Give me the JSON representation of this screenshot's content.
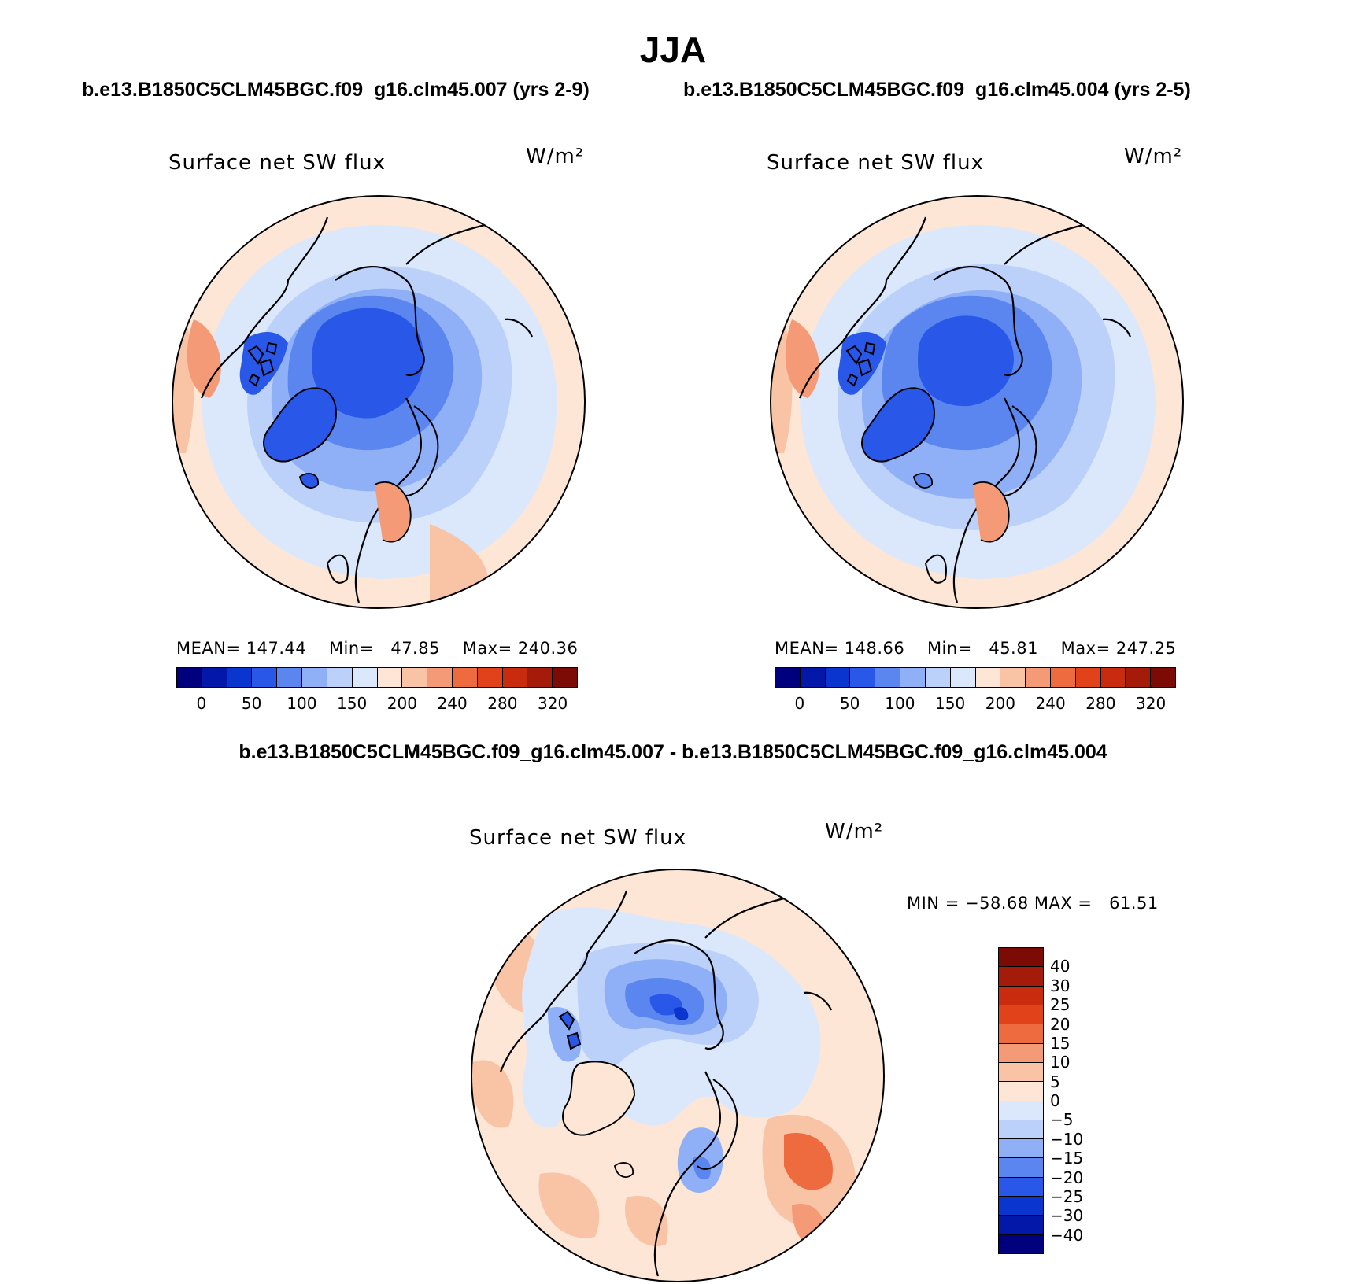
{
  "season": "JJA",
  "case_a_title": "b.e13.B1850C5CLM45BGC.f09_g16.clm45.007 (yrs 2-9)",
  "case_b_title": "b.e13.B1850C5CLM45BGC.f09_g16.clm45.004 (yrs 2-5)",
  "diff_title": "b.e13.B1850C5CLM45BGC.f09_g16.clm45.007 - b.e13.B1850C5CLM45BGC.f09_g16.clm45.004",
  "variable": "Surface net SW flux",
  "units": "W/m²",
  "panel_a": {
    "mean_label": "MEAN=",
    "mean": "147.44",
    "min_label": "Min=",
    "min": "47.85",
    "max_label": "Max=",
    "max": "240.36"
  },
  "panel_b": {
    "mean_label": "MEAN=",
    "mean": "148.66",
    "min_label": "Min=",
    "min": "45.81",
    "max_label": "Max=",
    "max": "247.25"
  },
  "panel_diff": {
    "min_label": "MIN =",
    "min": "−58.68",
    "max_label": "MAX =",
    "max": "61.51"
  },
  "abs_colorbar": {
    "tick_labels": [
      "0",
      "50",
      "100",
      "150",
      "200",
      "240",
      "280",
      "320"
    ],
    "colors": [
      "#00007f",
      "#0317a8",
      "#0a36cf",
      "#2958e8",
      "#5b86f0",
      "#8fb0f6",
      "#bcd1fa",
      "#dbe8fc",
      "#fde6d6",
      "#f9c3a6",
      "#f49a76",
      "#ee6a3f",
      "#e2421a",
      "#c92b0f",
      "#a41b0a",
      "#7c0a05"
    ]
  },
  "diff_colorbar": {
    "tick_labels": [
      "40",
      "30",
      "25",
      "20",
      "15",
      "10",
      "5",
      "0",
      "−5",
      "−10",
      "−15",
      "−20",
      "−25",
      "−30",
      "−40"
    ],
    "colors": [
      "#7c0a05",
      "#a41b0a",
      "#c92b0f",
      "#e2421a",
      "#ee6a3f",
      "#f49a76",
      "#f9c3a6",
      "#fde6d6",
      "#dbe8fc",
      "#bcd1fa",
      "#8fb0f6",
      "#5b86f0",
      "#2958e8",
      "#0a36cf",
      "#0317a8",
      "#00007f"
    ]
  }
}
